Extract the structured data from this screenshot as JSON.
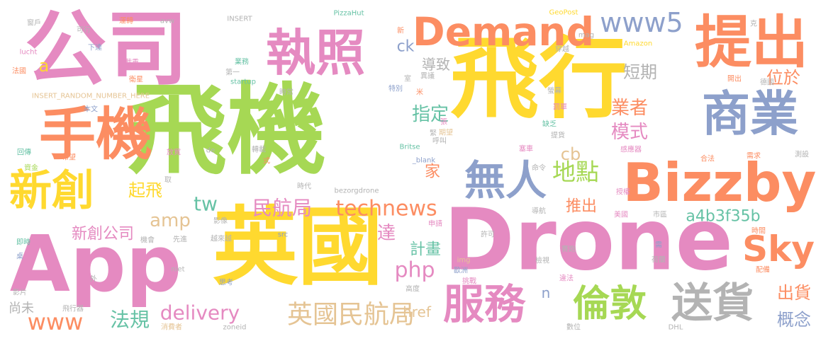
{
  "palette": {
    "pink": "#e58ac1",
    "green": "#a6d854",
    "yellow": "#ffd92f",
    "orange": "#fc8d62",
    "blue": "#8da0cb",
    "teal": "#66c2a5",
    "tan": "#e5c494",
    "gray": "#b3b3b3"
  },
  "words": [
    {
      "text": "公司",
      "color": "pink"
    },
    {
      "text": "飛機",
      "color": "green"
    },
    {
      "text": "飛行",
      "color": "yellow"
    },
    {
      "text": "Drone",
      "color": "pink"
    },
    {
      "text": "App",
      "color": "pink"
    },
    {
      "text": "英國",
      "color": "yellow"
    },
    {
      "text": "手機",
      "color": "orange"
    },
    {
      "text": "執照",
      "color": "pink"
    },
    {
      "text": "提出",
      "color": "orange"
    },
    {
      "text": "Demand",
      "color": "orange"
    },
    {
      "text": "商業",
      "color": "blue"
    },
    {
      "text": "Bizzby",
      "color": "orange"
    },
    {
      "text": "新創",
      "color": "yellow"
    },
    {
      "text": "無人",
      "color": "blue"
    },
    {
      "text": "服務",
      "color": "pink"
    },
    {
      "text": "倫敦",
      "color": "green"
    },
    {
      "text": "送貨",
      "color": "gray"
    },
    {
      "text": "Sky",
      "color": "orange"
    },
    {
      "text": "www5",
      "color": "blue"
    },
    {
      "text": "technews",
      "color": "orange"
    },
    {
      "text": "英國民航局",
      "color": "tan"
    },
    {
      "text": "地點",
      "color": "green"
    },
    {
      "text": "delivery",
      "color": "pink"
    },
    {
      "text": "www",
      "color": "orange"
    },
    {
      "text": "民航局",
      "color": "pink"
    },
    {
      "text": "法規",
      "color": "teal"
    },
    {
      "text": "業者",
      "color": "orange"
    },
    {
      "text": "模式",
      "color": "pink"
    },
    {
      "text": "指定",
      "color": "teal"
    },
    {
      "text": "短期",
      "color": "gray"
    },
    {
      "text": "位於",
      "color": "orange"
    },
    {
      "text": "出貨",
      "color": "orange"
    },
    {
      "text": "概念",
      "color": "blue"
    },
    {
      "text": "php",
      "color": "pink"
    },
    {
      "text": "a4b3f35b",
      "color": "teal"
    },
    {
      "text": "tw",
      "color": "teal"
    },
    {
      "text": "amp",
      "color": "tan"
    },
    {
      "text": "新創公司",
      "color": "pink"
    },
    {
      "text": "起飛",
      "color": "yellow"
    },
    {
      "text": "推出",
      "color": "orange"
    },
    {
      "text": "計畫",
      "color": "teal"
    },
    {
      "text": "達",
      "color": "pink"
    },
    {
      "text": "cb",
      "color": "tan"
    },
    {
      "text": "家",
      "color": "orange"
    },
    {
      "text": "導致",
      "color": "gray"
    },
    {
      "text": "ck",
      "color": "blue"
    },
    {
      "text": "a",
      "color": "yellow"
    },
    {
      "text": "href",
      "color": "tan"
    },
    {
      "text": "尚未",
      "color": "gray"
    },
    {
      "text": "n",
      "color": "blue"
    },
    {
      "text": "窗戶",
      "color": "gray"
    },
    {
      "text": "可行",
      "color": "gray"
    },
    {
      "text": "運轉",
      "color": "orange"
    },
    {
      "text": "avw",
      "color": "gray"
    },
    {
      "text": "INSERT",
      "color": "gray"
    },
    {
      "text": "PizzaHut",
      "color": "teal"
    },
    {
      "text": "GeoPost",
      "color": "yellow"
    },
    {
      "text": "克",
      "color": "gray"
    },
    {
      "text": "新",
      "color": "orange"
    },
    {
      "text": "mag",
      "color": "gray"
    },
    {
      "text": "lucht",
      "color": "pink"
    },
    {
      "text": "下達",
      "color": "blue"
    },
    {
      "text": "穿越",
      "color": "gray"
    },
    {
      "text": "Amazon",
      "color": "yellow"
    },
    {
      "text": "法國",
      "color": "orange"
    },
    {
      "text": "載重",
      "color": "pink"
    },
    {
      "text": "業務",
      "color": "teal"
    },
    {
      "text": "衛星",
      "color": "orange"
    },
    {
      "text": "第一",
      "color": "gray"
    },
    {
      "text": "startup",
      "color": "teal"
    },
    {
      "text": "室",
      "color": "gray"
    },
    {
      "text": "異議",
      "color": "gray"
    },
    {
      "text": "開出",
      "color": "orange"
    },
    {
      "text": "德國",
      "color": "gray"
    },
    {
      "text": "INSERT_RANDOM_NUMBER_HERE",
      "color": "tan"
    },
    {
      "text": "米",
      "color": "orange"
    },
    {
      "text": "特別",
      "color": "blue"
    },
    {
      "text": "螢幕",
      "color": "gray"
    },
    {
      "text": "時常",
      "color": "gray"
    },
    {
      "text": "本文",
      "color": "blue"
    },
    {
      "text": "罰單",
      "color": "pink"
    },
    {
      "text": "期望",
      "color": "tan"
    },
    {
      "text": "缺乏",
      "color": "teal"
    },
    {
      "text": "張",
      "color": "pink"
    },
    {
      "text": "呼叫",
      "color": "gray"
    },
    {
      "text": "緊",
      "color": "gray"
    },
    {
      "text": "提貨",
      "color": "gray"
    },
    {
      "text": "回傳",
      "color": "teal"
    },
    {
      "text": "希望",
      "color": "orange"
    },
    {
      "text": "放寬",
      "color": "pink"
    },
    {
      "text": "de",
      "color": "gray"
    },
    {
      "text": "轉載",
      "color": "gray"
    },
    {
      "text": "Britse",
      "color": "teal"
    },
    {
      "text": "_blank",
      "color": "blue"
    },
    {
      "text": "塞車",
      "color": "pink"
    },
    {
      "text": "感應器",
      "color": "pink"
    },
    {
      "text": "合法",
      "color": "orange"
    },
    {
      "text": "需求",
      "color": "orange"
    },
    {
      "text": "測設",
      "color": "gray"
    },
    {
      "text": "資金",
      "color": "green"
    },
    {
      "text": "取",
      "color": "gray"
    },
    {
      "text": "式",
      "color": "orange"
    },
    {
      "text": "命令",
      "color": "gray"
    },
    {
      "text": "時代",
      "color": "gray"
    },
    {
      "text": "bezorgdrone",
      "color": "gray"
    },
    {
      "text": "授權",
      "color": "pink"
    },
    {
      "text": "導航",
      "color": "gray"
    },
    {
      "text": "市區",
      "color": "gray"
    },
    {
      "text": "美國",
      "color": "pink"
    },
    {
      "text": "影像",
      "color": "gray"
    },
    {
      "text": "即時",
      "color": "teal"
    },
    {
      "text": "機會",
      "color": "gray"
    },
    {
      "text": "先進",
      "color": "gray"
    },
    {
      "text": "越來越",
      "color": "gray"
    },
    {
      "text": "src",
      "color": "blue"
    },
    {
      "text": "申請",
      "color": "pink"
    },
    {
      "text": "許可",
      "color": "gray"
    },
    {
      "text": "時間",
      "color": "orange"
    },
    {
      "text": "需",
      "color": "blue"
    },
    {
      "text": "桌",
      "color": "blue"
    },
    {
      "text": "niet",
      "color": "gray"
    },
    {
      "text": "img",
      "color": "tan"
    },
    {
      "text": "歐洲",
      "color": "blue"
    },
    {
      "text": "賽跑",
      "color": "gray"
    },
    {
      "text": "檢視",
      "color": "gray"
    },
    {
      "text": "荷蘭",
      "color": "gray"
    },
    {
      "text": "配備",
      "color": "orange"
    },
    {
      "text": "外",
      "color": "gray"
    },
    {
      "text": "挑戰",
      "color": "pink"
    },
    {
      "text": "違法",
      "color": "pink"
    },
    {
      "text": "影片",
      "color": "gray"
    },
    {
      "text": "思考",
      "color": "blue"
    },
    {
      "text": "高度",
      "color": "gray"
    },
    {
      "text": "飛行器",
      "color": "gray"
    },
    {
      "text": "消費者",
      "color": "tan"
    },
    {
      "text": "zoneid",
      "color": "gray"
    },
    {
      "text": "數位",
      "color": "gray"
    },
    {
      "text": "DHL",
      "color": "gray"
    }
  ]
}
